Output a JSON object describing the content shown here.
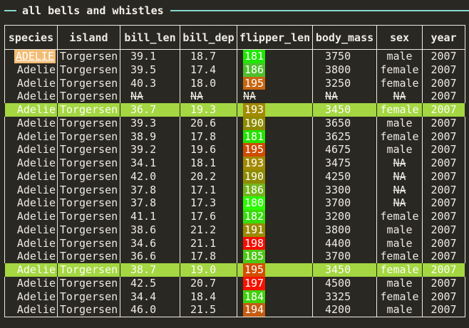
{
  "terminal": {
    "title": "all bells and whistles"
  },
  "colors": {
    "background": "#2A2822",
    "foreground": "#EDEBE3",
    "table_border": "#EDEBE3",
    "title_rule_cyan": "#86D9D1",
    "row_highlight_green": "#A4D742",
    "species_badge_orange": "#F2BC74",
    "chip_text": "#FFFFFF"
  },
  "table": {
    "columns": [
      "species",
      "island",
      "bill_len",
      "bill_dep",
      "flipper_len",
      "body_mass",
      "sex",
      "year"
    ],
    "rows": [
      {
        "species": "ADELIE",
        "species_badge": true,
        "island": "Torgersen",
        "bill_len": "39.1",
        "bill_dep": "18.7",
        "flipper_len": "181",
        "flipper_color": "#1FE603",
        "body_mass": "3750",
        "sex": "male",
        "year": "2007",
        "highlighted": false
      },
      {
        "species": "Adelie",
        "island": "Torgersen",
        "bill_len": "39.5",
        "bill_dep": "17.4",
        "flipper_len": "186",
        "flipper_color": "#4FBF2D",
        "body_mass": "3800",
        "sex": "female",
        "year": "2007",
        "highlighted": false
      },
      {
        "species": "Adelie",
        "island": "Torgersen",
        "bill_len": "40.3",
        "bill_dep": "18.0",
        "flipper_len": "195",
        "flipper_color": "#C8660F",
        "body_mass": "3250",
        "sex": "female",
        "year": "2007",
        "highlighted": false
      },
      {
        "species": "Adelie",
        "island": "Torgersen",
        "bill_len": "NA",
        "bill_dep": "NA",
        "flipper_len": "NA",
        "flipper_color": null,
        "body_mass": "NA",
        "sex": "NA",
        "year": "2007",
        "highlighted": false
      },
      {
        "species": "Adelie",
        "island": "Torgersen",
        "bill_len": "36.7",
        "bill_dep": "19.3",
        "flipper_len": "193",
        "flipper_color": "#A18A00",
        "body_mass": "3450",
        "sex": "female",
        "year": "2007",
        "highlighted": true
      },
      {
        "species": "Adelie",
        "island": "Torgersen",
        "bill_len": "39.3",
        "bill_dep": "20.6",
        "flipper_len": "190",
        "flipper_color": "#8E8B00",
        "body_mass": "3650",
        "sex": "male",
        "year": "2007",
        "highlighted": false
      },
      {
        "species": "Adelie",
        "island": "Torgersen",
        "bill_len": "38.9",
        "bill_dep": "17.8",
        "flipper_len": "181",
        "flipper_color": "#24E400",
        "body_mass": "3625",
        "sex": "female",
        "year": "2007",
        "highlighted": false
      },
      {
        "species": "Adelie",
        "island": "Torgersen",
        "bill_len": "39.2",
        "bill_dep": "19.6",
        "flipper_len": "195",
        "flipper_color": "#CE4C00",
        "body_mass": "4675",
        "sex": "male",
        "year": "2007",
        "highlighted": false
      },
      {
        "species": "Adelie",
        "island": "Torgersen",
        "bill_len": "34.1",
        "bill_dep": "18.1",
        "flipper_len": "193",
        "flipper_color": "#A18A00",
        "body_mass": "3475",
        "sex": "NA",
        "year": "2007",
        "highlighted": false
      },
      {
        "species": "Adelie",
        "island": "Torgersen",
        "bill_len": "42.0",
        "bill_dep": "20.2",
        "flipper_len": "190",
        "flipper_color": "#8E8B00",
        "body_mass": "4250",
        "sex": "NA",
        "year": "2007",
        "highlighted": false
      },
      {
        "species": "Adelie",
        "island": "Torgersen",
        "bill_len": "37.8",
        "bill_dep": "17.1",
        "flipper_len": "186",
        "flipper_color": "#74B41C",
        "body_mass": "3300",
        "sex": "NA",
        "year": "2007",
        "highlighted": false
      },
      {
        "species": "Adelie",
        "island": "Torgersen",
        "bill_len": "37.8",
        "bill_dep": "17.3",
        "flipper_len": "180",
        "flipper_color": "#2BFB00",
        "body_mass": "3700",
        "sex": "NA",
        "year": "2007",
        "highlighted": false
      },
      {
        "species": "Adelie",
        "island": "Torgersen",
        "bill_len": "41.1",
        "bill_dep": "17.6",
        "flipper_len": "182",
        "flipper_color": "#38DC0C",
        "body_mass": "3200",
        "sex": "female",
        "year": "2007",
        "highlighted": false
      },
      {
        "species": "Adelie",
        "island": "Torgersen",
        "bill_len": "38.6",
        "bill_dep": "21.2",
        "flipper_len": "191",
        "flipper_color": "#9A8A00",
        "body_mass": "3800",
        "sex": "male",
        "year": "2007",
        "highlighted": false
      },
      {
        "species": "Adelie",
        "island": "Torgersen",
        "bill_len": "34.6",
        "bill_dep": "21.1",
        "flipper_len": "198",
        "flipper_color": "#F80D00",
        "body_mass": "4400",
        "sex": "male",
        "year": "2007",
        "highlighted": false
      },
      {
        "species": "Adelie",
        "island": "Torgersen",
        "bill_len": "36.6",
        "bill_dep": "17.8",
        "flipper_len": "185",
        "flipper_color": "#4CC714",
        "body_mass": "3700",
        "sex": "female",
        "year": "2007",
        "highlighted": false
      },
      {
        "species": "Adelie",
        "island": "Torgersen",
        "bill_len": "38.7",
        "bill_dep": "19.0",
        "flipper_len": "195",
        "flipper_color": "#D24E00",
        "body_mass": "3450",
        "sex": "female",
        "year": "2007",
        "highlighted": true
      },
      {
        "species": "Adelie",
        "island": "Torgersen",
        "bill_len": "42.5",
        "bill_dep": "20.7",
        "flipper_len": "197",
        "flipper_color": "#F51300",
        "body_mass": "4500",
        "sex": "male",
        "year": "2007",
        "highlighted": false
      },
      {
        "species": "Adelie",
        "island": "Torgersen",
        "bill_len": "34.4",
        "bill_dep": "18.4",
        "flipper_len": "184",
        "flipper_color": "#3FD20B",
        "body_mass": "3325",
        "sex": "female",
        "year": "2007",
        "highlighted": false
      },
      {
        "species": "Adelie",
        "island": "Torgersen",
        "bill_len": "46.0",
        "bill_dep": "21.5",
        "flipper_len": "194",
        "flipper_color": "#C45C12",
        "body_mass": "4200",
        "sex": "male",
        "year": "2007",
        "highlighted": false
      }
    ]
  }
}
